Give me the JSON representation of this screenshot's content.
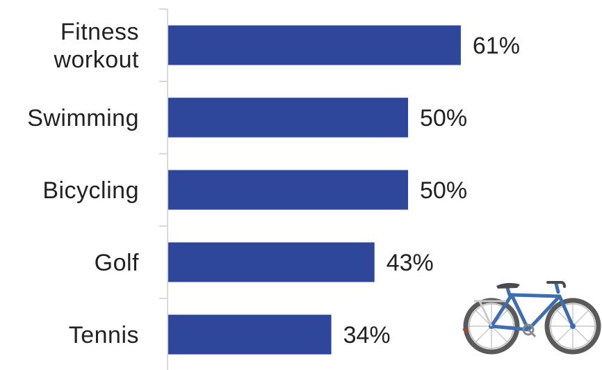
{
  "chart_data": {
    "type": "bar",
    "orientation": "horizontal",
    "categories": [
      "Fitness workout",
      "Swimming",
      "Bicycling",
      "Golf",
      "Tennis"
    ],
    "category_lines": [
      [
        "Fitness",
        "workout"
      ],
      [
        "Swimming"
      ],
      [
        "Bicycling"
      ],
      [
        "Golf"
      ],
      [
        "Tennis"
      ]
    ],
    "values": [
      61,
      50,
      50,
      43,
      34
    ],
    "value_labels": [
      "61%",
      "50%",
      "50%",
      "43%",
      "34%"
    ],
    "unit": "%",
    "xlim": [
      0,
      100
    ],
    "grid": false,
    "legend": "none",
    "title": "",
    "xlabel": "",
    "ylabel": ""
  },
  "colors": {
    "bar": "#2E479B",
    "axis": "#D9D9D9",
    "text": "#222222"
  },
  "illustration": {
    "icon": "bicycle-icon"
  }
}
